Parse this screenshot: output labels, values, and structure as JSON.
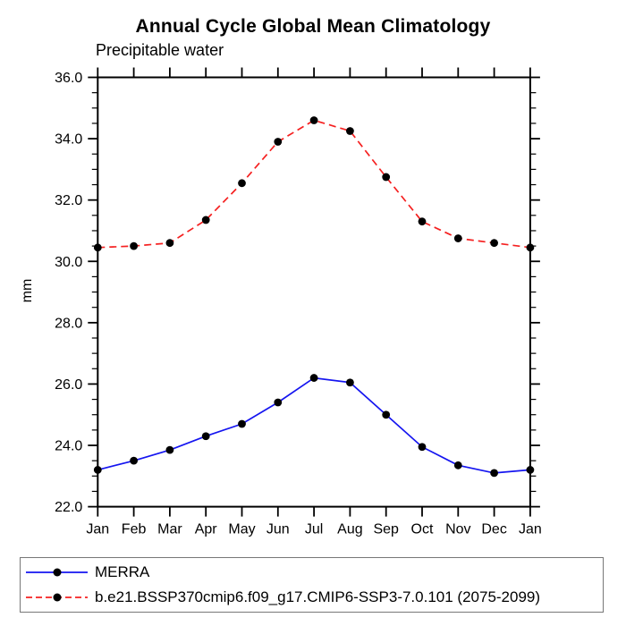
{
  "chart_data": {
    "type": "line",
    "title": "Annual Cycle Global Mean Climatology",
    "subtitle": "Precipitable water",
    "xlabel": "",
    "ylabel": "mm",
    "categories": [
      "Jan",
      "Feb",
      "Mar",
      "Apr",
      "May",
      "Jun",
      "Jul",
      "Aug",
      "Sep",
      "Oct",
      "Nov",
      "Dec",
      "Jan"
    ],
    "ylim": [
      22.0,
      36.0
    ],
    "ytick_major": 2.0,
    "ytick_minor": 0.5,
    "ytick_labels": [
      "22.0",
      "24.0",
      "26.0",
      "28.0",
      "30.0",
      "32.0",
      "34.0",
      "36.0"
    ],
    "grid": false,
    "legend_position": "bottom-box",
    "series": [
      {
        "name": "MERRA",
        "style": "solid",
        "color": "#1515f0",
        "marker": "circle",
        "marker_color": "#000000",
        "values": [
          23.2,
          23.5,
          23.85,
          24.3,
          24.7,
          25.4,
          26.2,
          26.05,
          25.0,
          23.95,
          23.35,
          23.1,
          23.2
        ]
      },
      {
        "name": "b.e21.BSSP370cmip6.f09_g17.CMIP6-SSP3-7.0.101 (2075-2099)",
        "style": "dashed",
        "color": "#f52020",
        "marker": "circle",
        "marker_color": "#000000",
        "values": [
          30.45,
          30.5,
          30.6,
          31.35,
          32.55,
          33.9,
          34.6,
          34.25,
          32.75,
          31.3,
          30.75,
          30.6,
          30.45
        ]
      }
    ]
  }
}
